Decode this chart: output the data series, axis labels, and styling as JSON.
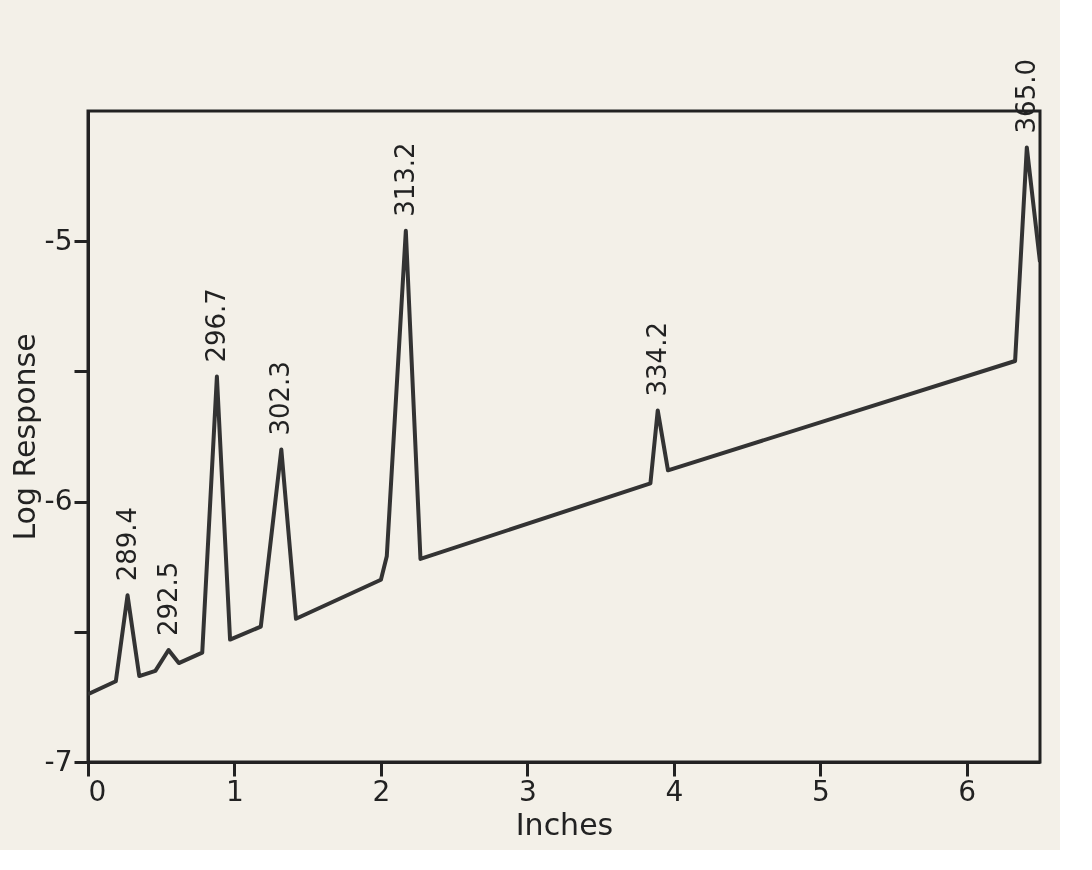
{
  "chart_data": {
    "type": "line",
    "xlabel": "Inches",
    "ylabel": "Log Response",
    "x": [
      0,
      0.19,
      0.27,
      0.35,
      0.46,
      0.55,
      0.62,
      0.78,
      0.88,
      0.97,
      1.18,
      1.32,
      1.42,
      2.0,
      2.04,
      2.17,
      2.27,
      3.84,
      3.89,
      3.96,
      6.33,
      6.41,
      6.5
    ],
    "series": [
      {
        "color": "#333333",
        "values": [
          -6.74,
          -6.69,
          -6.36,
          -6.67,
          -6.65,
          -6.57,
          -6.62,
          -6.58,
          -5.52,
          -6.53,
          -6.48,
          -5.8,
          -6.45,
          -6.3,
          -6.21,
          -4.96,
          -6.22,
          -5.93,
          -5.65,
          -5.88,
          -5.46,
          -4.64,
          -5.08
        ]
      }
    ],
    "xlim": [
      0,
      6.5
    ],
    "xticks": [
      0,
      1,
      2,
      3,
      4,
      5,
      6
    ],
    "ylim": [
      -7,
      -4.5
    ],
    "yticks": [
      -7,
      -6,
      -5,
      {
        "value": -6.5,
        "label": null
      },
      {
        "value": -5.5,
        "label": null
      }
    ],
    "grid": false,
    "marker": "none",
    "line_style": "solid",
    "legend": false,
    "annotations": [
      {
        "text": "289.4",
        "x": 0.27,
        "y": -6.36
      },
      {
        "text": "292.5",
        "x": 0.55,
        "y": -6.57
      },
      {
        "text": "296.7",
        "x": 0.88,
        "y": -5.52
      },
      {
        "text": "302.3",
        "x": 1.32,
        "y": -5.8
      },
      {
        "text": "313.2",
        "x": 2.17,
        "y": -4.96
      },
      {
        "text": "334.2",
        "x": 3.89,
        "y": -5.65
      },
      {
        "text": "365.0",
        "x": 6.41,
        "y": -4.64
      }
    ]
  }
}
